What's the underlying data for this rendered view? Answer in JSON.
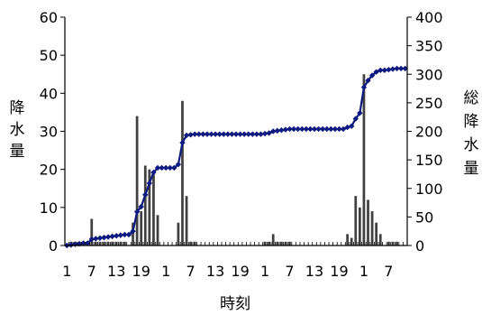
{
  "chart_data": {
    "type": "bar+line",
    "xlabel": "時刻",
    "ylabel_left": "降水量",
    "ylabel_right": "総降水量",
    "ylim_left": [
      0,
      60
    ],
    "ylim_right": [
      0,
      400
    ],
    "yticks_left": [
      "0",
      "10",
      "20",
      "30",
      "40",
      "50",
      "60"
    ],
    "yticks_right": [
      "0",
      "50",
      "100",
      "150",
      "200",
      "250",
      "300",
      "350",
      "400"
    ],
    "xticks": [
      {
        "hour": 1,
        "label": "1"
      },
      {
        "hour": 7,
        "label": "7"
      },
      {
        "hour": 13,
        "label": "13"
      },
      {
        "hour": 19,
        "label": "19"
      },
      {
        "hour": 25,
        "label": "1"
      },
      {
        "hour": 31,
        "label": "7"
      },
      {
        "hour": 37,
        "label": "13"
      },
      {
        "hour": 43,
        "label": "19"
      },
      {
        "hour": 49,
        "label": "1"
      },
      {
        "hour": 55,
        "label": "7"
      },
      {
        "hour": 61,
        "label": "13"
      },
      {
        "hour": 67,
        "label": "19"
      },
      {
        "hour": 73,
        "label": "1"
      },
      {
        "hour": 79,
        "label": "7"
      }
    ],
    "hours": 83,
    "series": [
      {
        "type": "bar",
        "axis": "left",
        "color": "#404040",
        "values": [
          0,
          1,
          1,
          1,
          1,
          0,
          7,
          1,
          1,
          1,
          1,
          1,
          1,
          1,
          1,
          0,
          6,
          34,
          9,
          21,
          20,
          19,
          8,
          0,
          0,
          0,
          0,
          6,
          38,
          13,
          1,
          1,
          0,
          0,
          0,
          0,
          0,
          0,
          0,
          0,
          0,
          0,
          0,
          0,
          0,
          0,
          0,
          0,
          1,
          1,
          3,
          1,
          1,
          1,
          1,
          0,
          0,
          0,
          0,
          0,
          0,
          0,
          0,
          0,
          0,
          0,
          0,
          0,
          3,
          2,
          13,
          10,
          45,
          12,
          9,
          6,
          3,
          0,
          1,
          1,
          1,
          0,
          0
        ]
      },
      {
        "type": "line",
        "axis": "right",
        "color": "#0d1a80",
        "values": [
          0,
          1,
          2,
          3,
          4,
          4,
          11,
          12,
          13,
          14,
          15,
          16,
          17,
          18,
          19,
          19,
          25,
          59,
          68,
          89,
          109,
          128,
          136,
          136,
          136,
          136,
          136,
          142,
          180,
          193,
          194,
          195,
          195,
          195,
          195,
          195,
          195,
          195,
          195,
          195,
          195,
          195,
          195,
          195,
          195,
          195,
          195,
          195,
          196,
          197,
          200,
          201,
          202,
          203,
          204,
          204,
          204,
          204,
          204,
          204,
          204,
          204,
          204,
          204,
          204,
          204,
          204,
          204,
          207,
          209,
          222,
          232,
          277,
          289,
          298,
          304,
          307,
          307,
          308,
          309,
          310,
          310,
          310
        ]
      }
    ]
  }
}
